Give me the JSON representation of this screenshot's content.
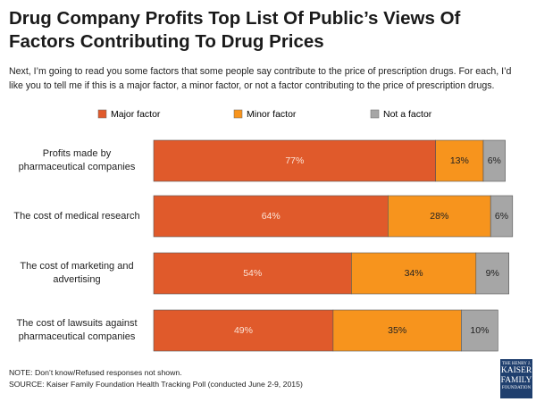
{
  "chart_data": {
    "type": "stacked-bar-horizontal",
    "title": "Drug Company Profits Top List Of Public’s Views Of Factors Contributing To Drug Prices",
    "subtitle": "Next, I’m going to read you some factors that some people say contribute to the price of prescription drugs. For each, I’d like you to tell me if this is a major factor, a minor factor, or not a factor contributing to the price of prescription drugs.",
    "categories": [
      "Profits made by pharmaceutical companies",
      "The cost of medical research",
      "The cost of marketing and advertising",
      "The cost of lawsuits against pharmaceutical companies"
    ],
    "series": [
      {
        "name": "Major factor",
        "color": "#e05a2b",
        "values": [
          77,
          64,
          54,
          49
        ],
        "value_labels": [
          "77%",
          "64%",
          "54%",
          "49%"
        ]
      },
      {
        "name": "Minor factor",
        "color": "#f7941d",
        "values": [
          13,
          28,
          34,
          35
        ],
        "value_labels": [
          "13%",
          "28%",
          "34%",
          "35%"
        ]
      },
      {
        "name": "Not a factor",
        "color": "#a6a6a6",
        "values": [
          6,
          6,
          9,
          10
        ],
        "value_labels": [
          "6%",
          "6%",
          "9%",
          "10%"
        ]
      }
    ],
    "xlim": [
      0,
      100
    ],
    "note": "NOTE: Don’t know/Refused responses not shown.",
    "source": "SOURCE: Kaiser Family Foundation Health Tracking Poll (conducted June 2-9, 2015)"
  },
  "logo": {
    "lines": [
      "THE HENRY J.",
      "KAISER",
      "FAMILY",
      "FOUNDATION"
    ]
  }
}
